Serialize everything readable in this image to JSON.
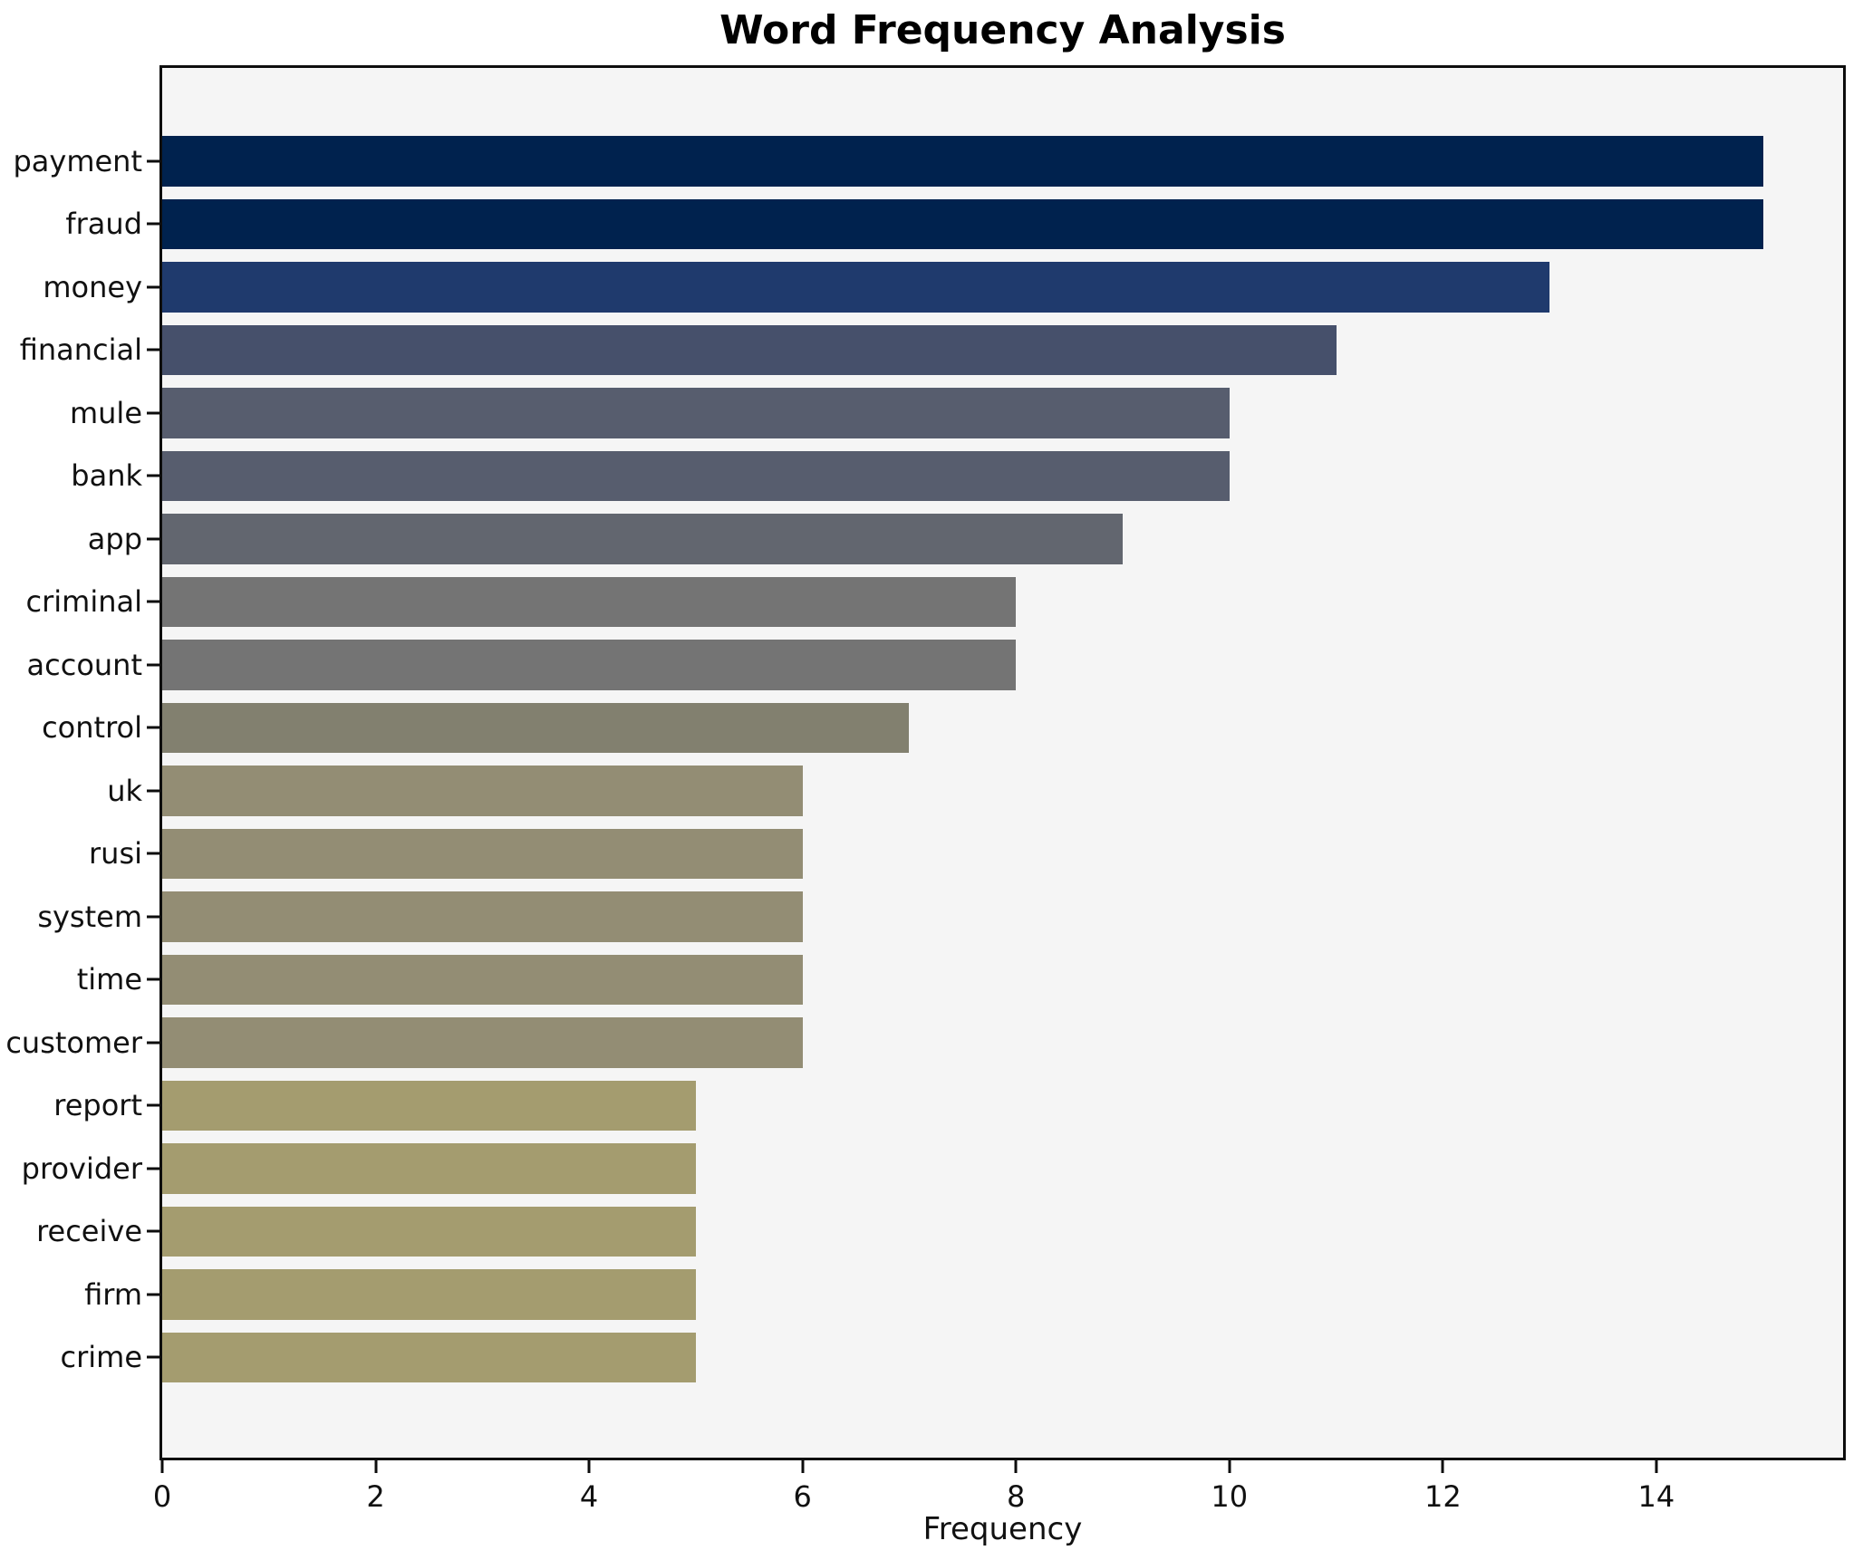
{
  "chart_data": {
    "type": "bar",
    "orientation": "horizontal",
    "title": "Word Frequency Analysis",
    "xlabel": "Frequency",
    "ylabel": "",
    "categories": [
      "payment",
      "fraud",
      "money",
      "financial",
      "mule",
      "bank",
      "app",
      "criminal",
      "account",
      "control",
      "uk",
      "rusi",
      "system",
      "time",
      "customer",
      "report",
      "provider",
      "receive",
      "firm",
      "crime"
    ],
    "values": [
      15,
      15,
      13,
      11,
      10,
      10,
      9,
      8,
      8,
      7,
      6,
      6,
      6,
      6,
      6,
      5,
      5,
      5,
      5,
      5
    ],
    "bar_colors": [
      "#00224e",
      "#00224e",
      "#1f3a6d",
      "#46506b",
      "#575d6e",
      "#575d6e",
      "#62666f",
      "#747474",
      "#747474",
      "#82806f",
      "#938d74",
      "#938d74",
      "#938d74",
      "#938d74",
      "#938d74",
      "#a49c6f",
      "#a49c6f",
      "#a49c6f",
      "#a49c6f",
      "#a49c6f"
    ],
    "xlim": [
      0,
      15.75
    ],
    "x_ticks": [
      0,
      2,
      4,
      6,
      8,
      10,
      12,
      14
    ],
    "grid": false,
    "legend": null,
    "colors": {
      "figure_bg": "#ffffff",
      "plot_bg": "#f5f5f5",
      "spine": "#0d0d0d",
      "text": "#111111"
    }
  }
}
